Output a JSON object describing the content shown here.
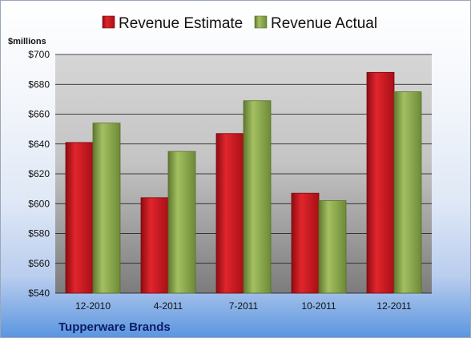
{
  "chart_data": {
    "type": "bar",
    "unit_label": "$millions",
    "caption": "Tupperware Brands",
    "categories": [
      "12-2010",
      "4-2011",
      "7-2011",
      "10-2011",
      "12-2011"
    ],
    "series": [
      {
        "name": "Revenue Estimate",
        "color": "#c0141d",
        "values": [
          641,
          604,
          647,
          607,
          688
        ]
      },
      {
        "name": "Revenue Actual",
        "color": "#8aa54a",
        "values": [
          654,
          635,
          669,
          602,
          675
        ]
      }
    ],
    "ylim": [
      540,
      700
    ],
    "yticks": [
      540,
      560,
      580,
      600,
      620,
      640,
      660,
      680,
      700
    ],
    "ytick_labels": [
      "$540",
      "$560",
      "$580",
      "$600",
      "$620",
      "$640",
      "$660",
      "$680",
      "$700"
    ],
    "grid": true,
    "legend_position": "top"
  }
}
